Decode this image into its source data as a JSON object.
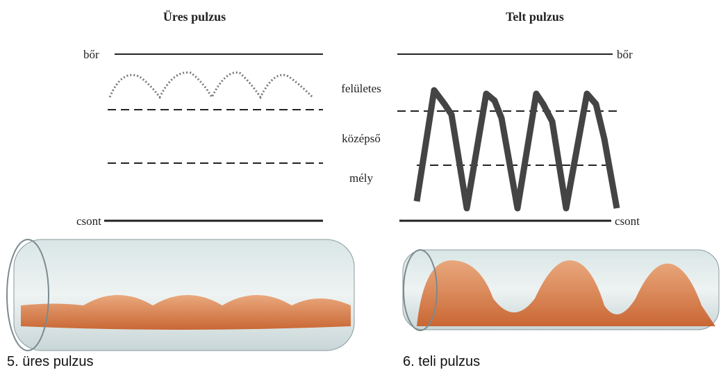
{
  "panels": [
    {
      "title": "Üres pulzus",
      "skin_label": "bőr",
      "bone_label": "csont",
      "caption": "5.  üres pulzus"
    },
    {
      "title": "Telt pulzus",
      "skin_label": "bőr",
      "bone_label": "csont",
      "caption": "6.  teli pulzus"
    }
  ],
  "depth_labels": [
    "felületes",
    "középső",
    "mély"
  ]
}
